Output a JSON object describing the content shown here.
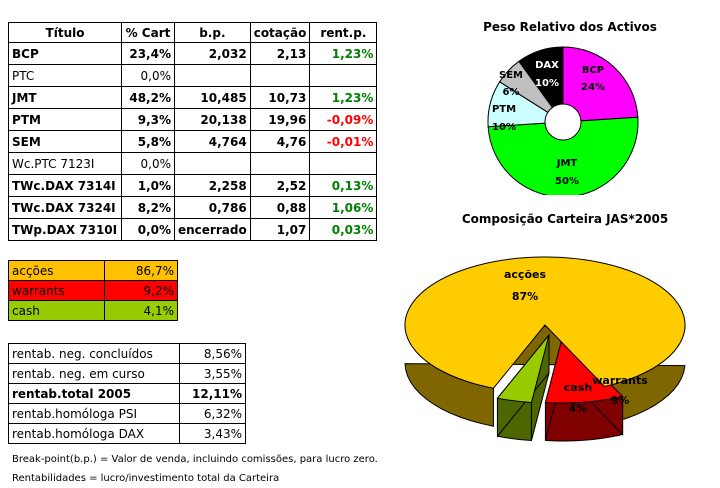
{
  "portfolio": {
    "headers": [
      "Título",
      "% Cart",
      "b.p.",
      "cotação",
      "rent.p."
    ],
    "rows": [
      {
        "titulo": "BCP",
        "cart": "23,4%",
        "bp": "2,032",
        "cotacao": "2,13",
        "rent": "1,23%",
        "rent_color": "pos",
        "bold": true
      },
      {
        "titulo": "PTC",
        "cart": "0,0%",
        "bp": "",
        "cotacao": "",
        "rent": "",
        "rent_color": "",
        "bold": false
      },
      {
        "titulo": "JMT",
        "cart": "48,2%",
        "bp": "10,485",
        "cotacao": "10,73",
        "rent": "1,23%",
        "rent_color": "pos",
        "bold": true
      },
      {
        "titulo": "PTM",
        "cart": "9,3%",
        "bp": "20,138",
        "cotacao": "19,96",
        "rent": "-0,09%",
        "rent_color": "neg",
        "bold": true
      },
      {
        "titulo": "SEM",
        "cart": "5,8%",
        "bp": "4,764",
        "cotacao": "4,76",
        "rent": "-0,01%",
        "rent_color": "neg",
        "bold": true
      },
      {
        "titulo": "Wc.PTC 7123I",
        "cart": "0,0%",
        "bp": "",
        "cotacao": "",
        "rent": "",
        "rent_color": "",
        "bold": false
      },
      {
        "titulo": "TWc.DAX 7314I",
        "cart": "1,0%",
        "bp": "2,258",
        "cotacao": "2,52",
        "rent": "0,13%",
        "rent_color": "pos",
        "bold": true
      },
      {
        "titulo": "TWc.DAX 7324I",
        "cart": "8,2%",
        "bp": "0,786",
        "cotacao": "0,88",
        "rent": "1,06%",
        "rent_color": "pos",
        "bold": true
      },
      {
        "titulo": "TWp.DAX 7310I",
        "cart": "0,0%",
        "bp": "encerrado",
        "cotacao": "1,07",
        "rent": "0,03%",
        "rent_color": "pos",
        "bold": true
      }
    ]
  },
  "allocation": [
    {
      "label": "acções",
      "value": "86,7%",
      "color": "#ffc000"
    },
    {
      "label": "warrants",
      "value": "9,2%",
      "color": "#ff0000"
    },
    {
      "label": "cash",
      "value": "4,1%",
      "color": "#99cc00"
    }
  ],
  "rentab": [
    {
      "label": "rentab. neg. concluídos",
      "value": "8,56%",
      "bold": false
    },
    {
      "label": "rentab. neg. em curso",
      "value": "3,55%",
      "bold": false
    },
    {
      "label": "rentab.total 2005",
      "value": "12,11%",
      "bold": true
    },
    {
      "label": "rentab.homóloga PSI",
      "value": "6,32%",
      "bold": false
    },
    {
      "label": "rentab.homóloga DAX",
      "value": "3,43%",
      "bold": false
    }
  ],
  "notes": {
    "line1": "Break-point(b.p.) = Valor de venda, incluindo comissões, para lucro zero.",
    "line2": "Rentabilidades = lucro/investimento total da Carteira"
  },
  "chart_data": [
    {
      "type": "pie",
      "title": "Peso Relativo dos Activos",
      "slices": [
        {
          "label": "BCP",
          "value": 24,
          "display": "24%",
          "color": "#ff00ff"
        },
        {
          "label": "JMT",
          "value": 50,
          "display": "50%",
          "color": "#00ff00"
        },
        {
          "label": "PTM",
          "value": 10,
          "display": "10%",
          "color": "#ccffff"
        },
        {
          "label": "SEM",
          "value": 6,
          "display": "6%",
          "color": "#c0c0c0"
        },
        {
          "label": "DAX",
          "value": 10,
          "display": "10%",
          "color": "#000000"
        }
      ],
      "donut": true
    },
    {
      "type": "pie",
      "title": "Composição Carteira JAS*2005",
      "slices": [
        {
          "label": "acções",
          "value": 87,
          "display": "87%",
          "color": "#ffcc00",
          "side": "#806600"
        },
        {
          "label": "warrants",
          "value": 9,
          "display": "9%",
          "color": "#ff0000",
          "side": "#800000"
        },
        {
          "label": "cash",
          "value": 4,
          "display": "4%",
          "color": "#99cc00",
          "side": "#4d6600"
        }
      ],
      "three_d": true
    }
  ]
}
